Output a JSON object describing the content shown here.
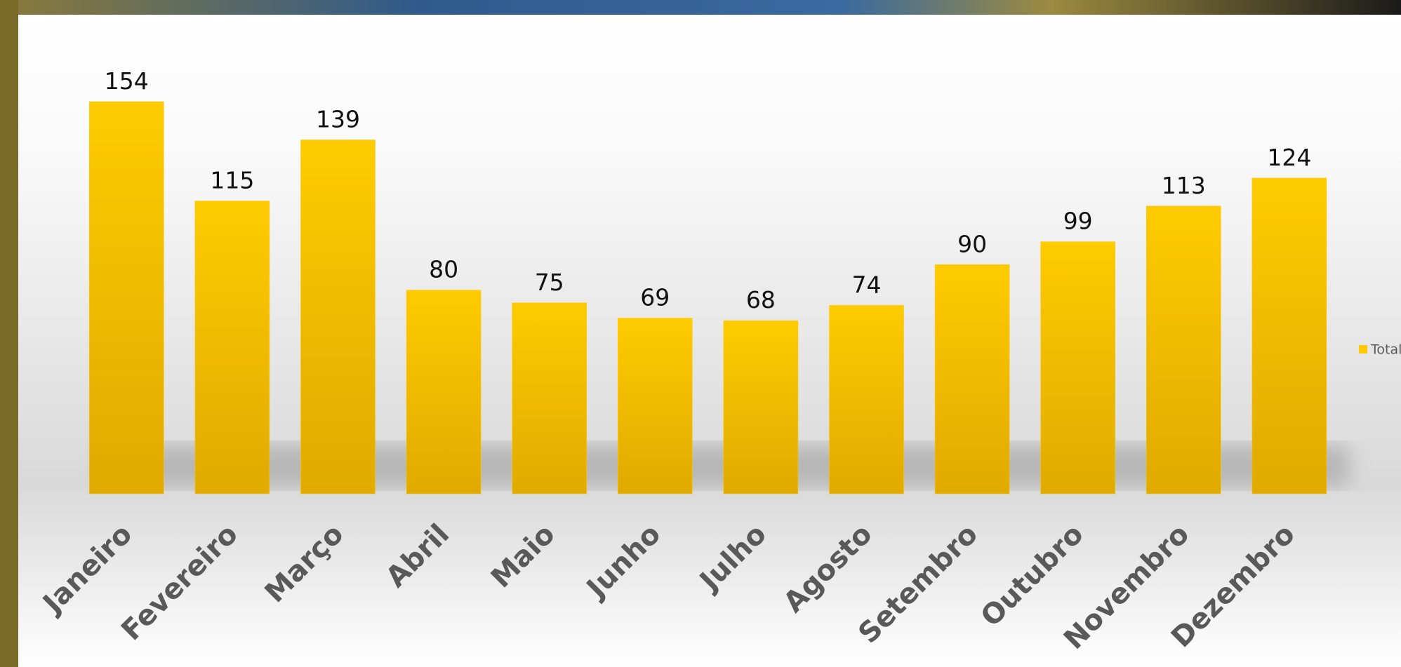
{
  "chart_data": {
    "type": "bar",
    "categories": [
      "Janeiro",
      "Fevereiro",
      "Março",
      "Abril",
      "Maio",
      "Junho",
      "Julho",
      "Agosto",
      "Setembro",
      "Outubro",
      "Novembro",
      "Dezembro"
    ],
    "series": [
      {
        "name": "Total",
        "color": "#ffc800",
        "values": [
          154,
          115,
          139,
          80,
          75,
          69,
          68,
          74,
          90,
          99,
          113,
          124
        ]
      }
    ],
    "legend": "right"
  }
}
